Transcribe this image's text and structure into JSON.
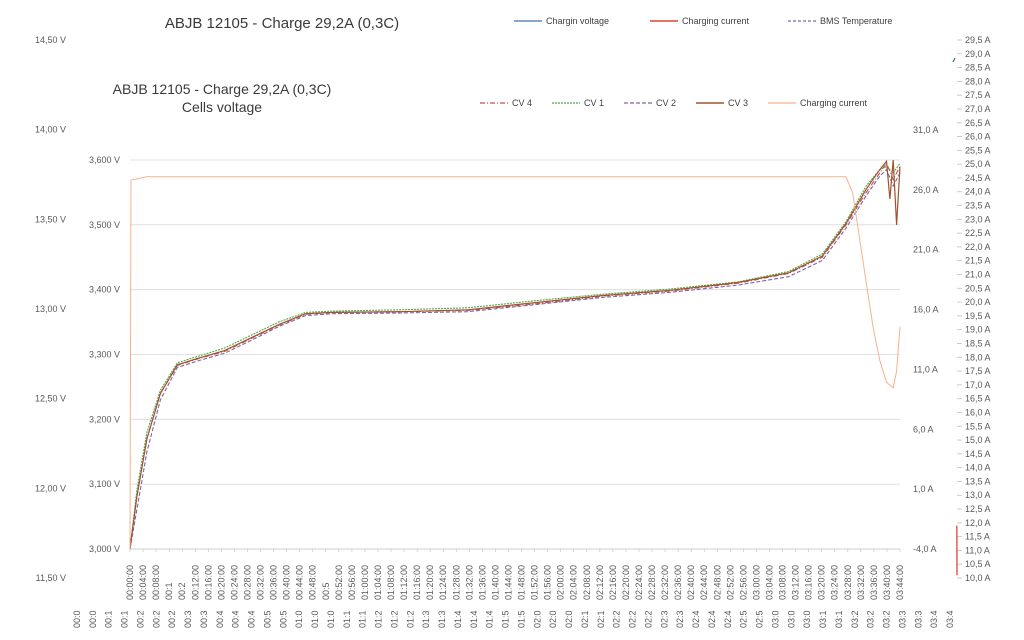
{
  "chart_data": [
    {
      "type": "line",
      "title": "ABJB 12105 - Charge 29,2A  (0,3C)",
      "legend": [
        "Chargin voltage",
        "Charging current",
        "BMS Temperature"
      ],
      "legend_placement": "top-right",
      "legend_colors": [
        "#5b8fbf",
        "#e0443c",
        "#7a6aa8"
      ],
      "y_left_ticks": [
        "14,50 V",
        "14,00 V",
        "13,50 V",
        "13,00 V",
        "12,50 V",
        "12,00 V",
        "11,50 V"
      ],
      "y_left_range": [
        11.5,
        14.5
      ],
      "y_right_ticks": [
        "29,5 A",
        "29,0 A",
        "28,5 A",
        "28,0 A",
        "27,5 A",
        "27,0 A",
        "26,5 A",
        "26,0 A",
        "25,5 A",
        "25,0 A",
        "24,5 A",
        "24,0 A",
        "23,5 A",
        "23,0 A",
        "22,5 A",
        "22,0 A",
        "21,5 A",
        "21,0 A",
        "20,5 A",
        "20,0 A",
        "19,5 A",
        "19,0 A",
        "18,5 A",
        "18,0 A",
        "17,5 A",
        "17,0 A",
        "16,5 A",
        "16,0 A",
        "15,5 A",
        "15,0 A",
        "14,5 A",
        "14,0 A",
        "13,5 A",
        "13,0 A",
        "12,5 A",
        "12,0 A",
        "11,5 A",
        "11,0 A",
        "10,5 A",
        "10,0 A"
      ],
      "y_right_range": [
        10.0,
        29.5
      ],
      "x_ticks": [
        "00:0",
        "00:0",
        "00:1",
        "00:1",
        "00:2",
        "00:2",
        "00:2",
        "00:3",
        "00:3",
        "00:4",
        "00:4",
        "00:4",
        "00:5",
        "00:5",
        "01:0",
        "01:0",
        "01:0",
        "01:1",
        "01:1",
        "01:2",
        "01:2",
        "01:2",
        "01:3",
        "01:3",
        "01:4",
        "01:4",
        "01:4",
        "01:5",
        "01:5",
        "02:0",
        "02:0",
        "02:0",
        "02:1",
        "02:1",
        "02:2",
        "02:2",
        "02:2",
        "02:3",
        "02:3",
        "02:4",
        "02:4",
        "02:4",
        "02:5",
        "02:5",
        "03:0",
        "03:0",
        "03:0",
        "03:1",
        "03:1",
        "03:2",
        "03:2",
        "03:2",
        "03:3",
        "03:3",
        "03:4",
        "03:4"
      ],
      "series": [
        {
          "name": "Charging current",
          "points": [
            [
              0.98,
              11.9
            ],
            [
              0.986,
              11.55
            ],
            [
              0.992,
              11.2
            ],
            [
              1.0,
              10.1
            ]
          ]
        }
      ]
    },
    {
      "type": "line",
      "title": "ABJB 12105 - Charge 29,2A  (0,3C)",
      "subtitle": "Cells voltage",
      "legend": [
        "CV 4",
        "CV 1",
        "CV 2",
        "CV 3",
        "Charging current"
      ],
      "legend_placement": "top-right",
      "legend_colors": [
        "#c0504d",
        "#4fa84f",
        "#8064a2",
        "#a0522d",
        "#f6b28d"
      ],
      "y_left_ticks": [
        "3,600 V",
        "3,500 V",
        "3,400 V",
        "3,300 V",
        "3,200 V",
        "3,100 V",
        "3,000 V"
      ],
      "y_left_range": [
        3.0,
        3.6
      ],
      "y_right_ticks": [
        "31,0 A",
        "26,0 A",
        "21,0 A",
        "16,0 A",
        "11,0 A",
        "6,0 A",
        "1,0 A",
        "-4,0 A"
      ],
      "y_right_range": [
        -4.0,
        31.0
      ],
      "x_ticks": [
        "00:00:00",
        "00:04:00",
        "00:08:00",
        "00:1",
        "00:2",
        "00:12:00",
        "00:16:00",
        "00:20:00",
        "00:24:00",
        "00:28:00",
        "00:32:00",
        "00:36:00",
        "00:40:00",
        "00:44:00",
        "00:48:00",
        "00:5",
        "00:52:00",
        "00:56:00",
        "01:00:00",
        "01:04:00",
        "01:08:00",
        "01:12:00",
        "01:16:00",
        "01:20:00",
        "01:24:00",
        "01:28:00",
        "01:32:00",
        "01:36:00",
        "01:40:00",
        "01:44:00",
        "01:48:00",
        "01:52:00",
        "01:56:00",
        "02:00:00",
        "02:04:00",
        "02:08:00",
        "02:12:00",
        "02:16:00",
        "02:20:00",
        "02:24:00",
        "02:28:00",
        "02:32:00",
        "02:36:00",
        "02:40:00",
        "02:44:00",
        "02:48:00",
        "02:52:00",
        "02:56:00",
        "03:00:00",
        "03:04:00",
        "03:08:00",
        "03:12:00",
        "03:16:00",
        "03:20:00",
        "03:24:00",
        "03:28:00",
        "03:32:00",
        "03:36:00",
        "03:40:00",
        "03:44:00"
      ],
      "x_range_minutes": [
        0,
        228
      ],
      "series": [
        {
          "name": "CV 4",
          "points": [
            [
              0,
              3.0
            ],
            [
              2,
              3.08
            ],
            [
              5,
              3.17
            ],
            [
              9,
              3.24
            ],
            [
              14,
              3.283
            ],
            [
              20,
              3.293
            ],
            [
              28,
              3.305
            ],
            [
              36,
              3.325
            ],
            [
              44,
              3.345
            ],
            [
              52,
              3.362
            ],
            [
              60,
              3.365
            ],
            [
              80,
              3.366
            ],
            [
              100,
              3.368
            ],
            [
              120,
              3.378
            ],
            [
              140,
              3.39
            ],
            [
              160,
              3.398
            ],
            [
              180,
              3.41
            ],
            [
              195,
              3.425
            ],
            [
              205,
              3.45
            ],
            [
              212,
              3.5
            ],
            [
              218,
              3.55
            ],
            [
              222,
              3.58
            ],
            [
              224,
              3.595
            ],
            [
              226,
              3.57
            ],
            [
              228,
              3.59
            ]
          ]
        },
        {
          "name": "CV 1",
          "points": [
            [
              0,
              3.0
            ],
            [
              2,
              3.09
            ],
            [
              5,
              3.18
            ],
            [
              9,
              3.245
            ],
            [
              14,
              3.287
            ],
            [
              20,
              3.297
            ],
            [
              28,
              3.31
            ],
            [
              36,
              3.33
            ],
            [
              44,
              3.35
            ],
            [
              52,
              3.365
            ],
            [
              60,
              3.367
            ],
            [
              80,
              3.369
            ],
            [
              100,
              3.372
            ],
            [
              120,
              3.383
            ],
            [
              140,
              3.393
            ],
            [
              160,
              3.401
            ],
            [
              180,
              3.412
            ],
            [
              195,
              3.428
            ],
            [
              205,
              3.455
            ],
            [
              212,
              3.505
            ],
            [
              218,
              3.56
            ],
            [
              222,
              3.585
            ],
            [
              224,
              3.59
            ],
            [
              226,
              3.58
            ],
            [
              228,
              3.595
            ]
          ]
        },
        {
          "name": "CV 2",
          "points": [
            [
              0,
              3.0
            ],
            [
              2,
              3.06
            ],
            [
              5,
              3.15
            ],
            [
              9,
              3.23
            ],
            [
              14,
              3.28
            ],
            [
              20,
              3.29
            ],
            [
              28,
              3.302
            ],
            [
              36,
              3.322
            ],
            [
              44,
              3.343
            ],
            [
              52,
              3.36
            ],
            [
              60,
              3.363
            ],
            [
              80,
              3.364
            ],
            [
              100,
              3.366
            ],
            [
              120,
              3.377
            ],
            [
              140,
              3.388
            ],
            [
              160,
              3.396
            ],
            [
              180,
              3.407
            ],
            [
              195,
              3.42
            ],
            [
              205,
              3.445
            ],
            [
              212,
              3.495
            ],
            [
              218,
              3.545
            ],
            [
              222,
              3.575
            ],
            [
              224,
              3.585
            ],
            [
              226,
              3.56
            ],
            [
              228,
              3.58
            ]
          ]
        },
        {
          "name": "CV 3",
          "points": [
            [
              0,
              3.0
            ],
            [
              2,
              3.08
            ],
            [
              5,
              3.17
            ],
            [
              9,
              3.24
            ],
            [
              14,
              3.284
            ],
            [
              20,
              3.294
            ],
            [
              28,
              3.306
            ],
            [
              36,
              3.326
            ],
            [
              44,
              3.346
            ],
            [
              52,
              3.363
            ],
            [
              60,
              3.365
            ],
            [
              80,
              3.366
            ],
            [
              100,
              3.369
            ],
            [
              120,
              3.38
            ],
            [
              140,
              3.391
            ],
            [
              160,
              3.399
            ],
            [
              180,
              3.411
            ],
            [
              195,
              3.426
            ],
            [
              205,
              3.452
            ],
            [
              212,
              3.502
            ],
            [
              218,
              3.555
            ],
            [
              222,
              3.585
            ],
            [
              224,
              3.598
            ],
            [
              225,
              3.54
            ],
            [
              226,
              3.6
            ],
            [
              227,
              3.5
            ],
            [
              228,
              3.59
            ]
          ]
        },
        {
          "name": "Charging current",
          "points": [
            [
              0,
              -4.0
            ],
            [
              0.3,
              29.2
            ],
            [
              5,
              29.5
            ],
            [
              40,
              29.5
            ],
            [
              60,
              29.5
            ],
            [
              200,
              29.5
            ],
            [
              212,
              29.5
            ],
            [
              214,
              28.0
            ],
            [
              216,
              24.0
            ],
            [
              218,
              20.0
            ],
            [
              220,
              16.0
            ],
            [
              222,
              13.0
            ],
            [
              224,
              11.0
            ],
            [
              226,
              10.5
            ],
            [
              227,
              12.0
            ],
            [
              228,
              16.0
            ]
          ]
        }
      ]
    }
  ]
}
